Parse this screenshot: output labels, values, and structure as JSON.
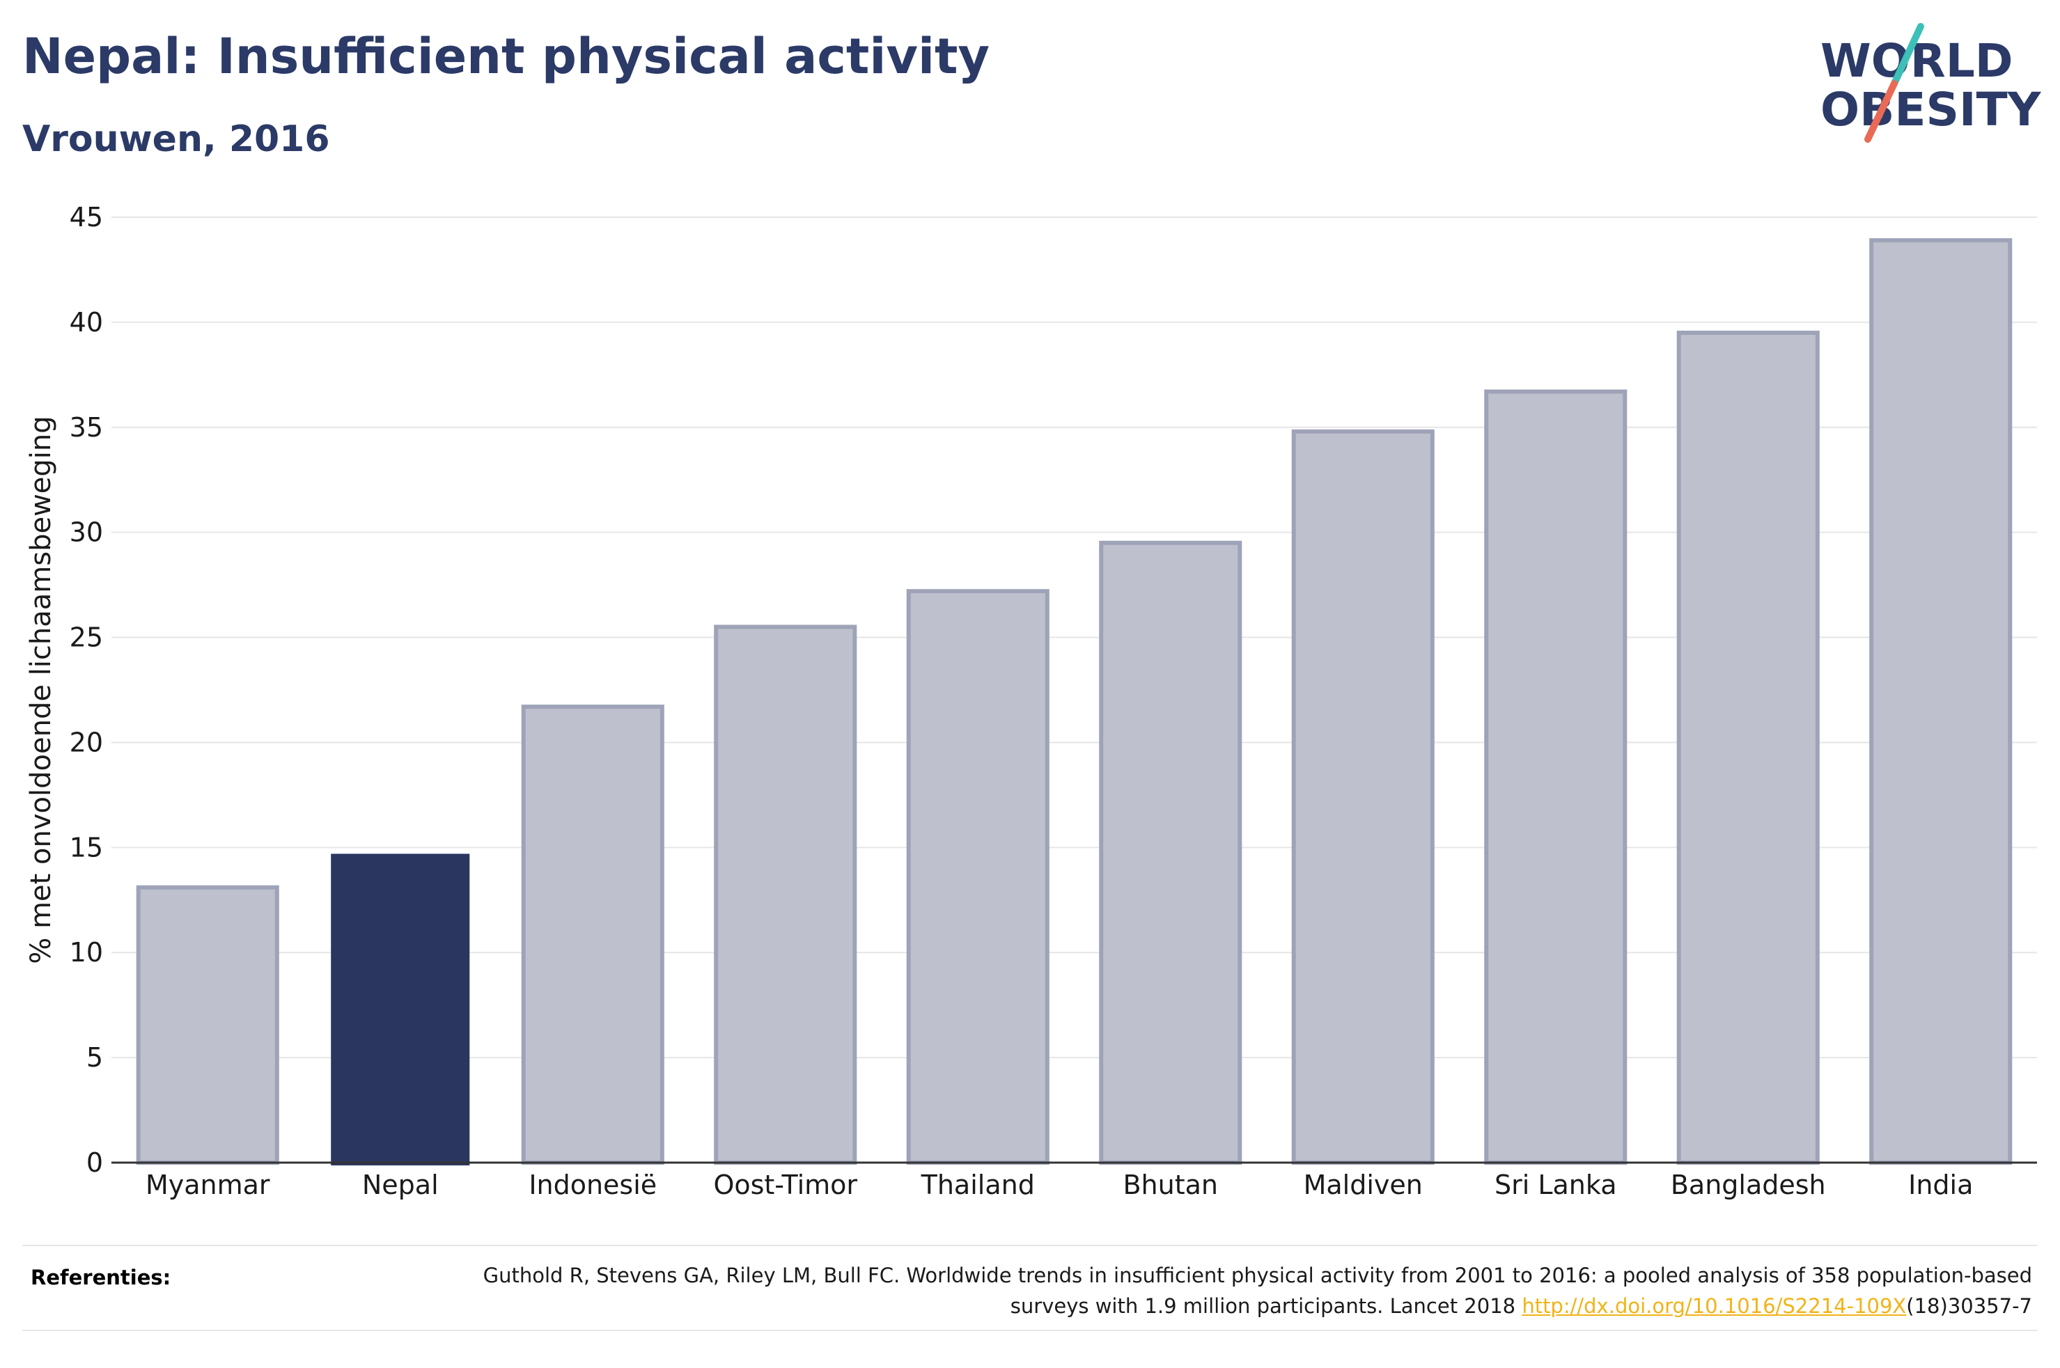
{
  "title": "Nepal: Insufficient physical activity",
  "subtitle": "Vrouwen, 2016",
  "logo": {
    "line1": "WORLD",
    "line2": "OBESITY",
    "accent_colors": [
      "#3cc0b8",
      "#ea6a55"
    ],
    "text_color": "#2b3a67"
  },
  "chart_data": {
    "type": "bar",
    "categories": [
      "Myanmar",
      "Nepal",
      "Indonesië",
      "Oost-Timor",
      "Thailand",
      "Bhutan",
      "Maldiven",
      "Sri Lanka",
      "Bangladesh",
      "India"
    ],
    "values": [
      13.1,
      14.7,
      21.7,
      25.5,
      27.2,
      29.5,
      34.8,
      36.7,
      39.5,
      43.9
    ],
    "highlight": "Nepal",
    "ylabel": "% met onvoldoende lichaamsbeweging",
    "xlabel": "",
    "ylim": [
      0,
      45
    ],
    "yticks": [
      0,
      5,
      10,
      15,
      20,
      25,
      30,
      35,
      40,
      45
    ],
    "grid": true,
    "colors": {
      "bar": "#bec1cd",
      "bar_border": "#9ea3b8",
      "highlight": "#2b3660",
      "axis": "#333333",
      "grid": "#e6e6e6"
    }
  },
  "references": {
    "label": "Referenties:",
    "text_before": "Guthold R, Stevens GA, Riley LM, Bull FC. Worldwide trends in insufficient physical activity from 2001 to 2016: a pooled analysis of 358 population-based surveys with 1.9 million participants. Lancet 2018 ",
    "link": "http://dx.doi.org/10.1016/S2214-109X",
    "text_after": "(18)30357-7"
  }
}
